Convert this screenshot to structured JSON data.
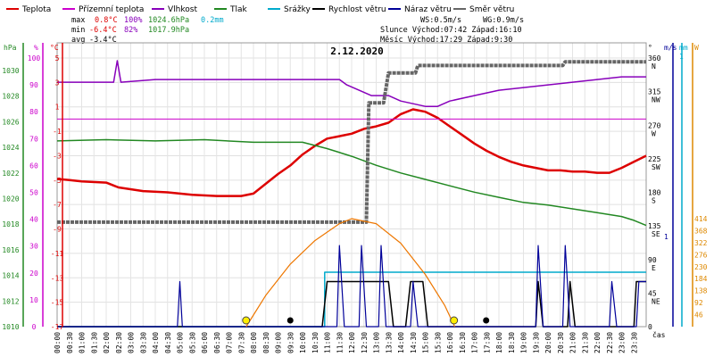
{
  "chart_data": {
    "type": "line",
    "title": "2.12.2020",
    "xlabel": "čas",
    "colors": {
      "teplota": "#dd0000",
      "prizemni_teplota": "#cc00cc",
      "vlhkost": "#8800bb",
      "tlak": "#228822",
      "srazky": "#00aacc",
      "rychlost_vetru": "#000000",
      "naraz_vetru": "#000099",
      "smer_vetru": "#666666",
      "sun": "#ee7700",
      "axis_orange": "#dd8800"
    },
    "legend": [
      {
        "key": "teplota",
        "label": "Teplota"
      },
      {
        "key": "prizemni_teplota",
        "label": "Přízemní teplota"
      },
      {
        "key": "vlhkost",
        "label": "Vlhkost"
      },
      {
        "key": "tlak",
        "label": "Tlak"
      },
      {
        "key": "srazky",
        "label": "Srážky"
      },
      {
        "key": "rychlost_vetru",
        "label": "Rychlost větru"
      },
      {
        "key": "naraz_vetru",
        "label": "Náraz větru"
      },
      {
        "key": "smer_vetru",
        "label": "Směr větru"
      }
    ],
    "stats": {
      "max": {
        "label": "max",
        "temp": "0.8°C",
        "hum": "100%",
        "press": "1024.6hPa",
        "rain": "0.2mm"
      },
      "min": {
        "label": "min",
        "temp": "-6.4°C",
        "hum": "82%",
        "press": "1017.9hPa"
      },
      "avg": {
        "label": "avg",
        "temp": "-3.4°C"
      },
      "ws": "WS:0.5m/s",
      "wg": "WG:0.9m/s",
      "sun": "Slunce Východ:07:42  Západ:16:10",
      "moon": "Měsíc  Východ:17:29  Západ:9:30"
    },
    "axes": {
      "hpa": {
        "label": "hPa",
        "ticks": [
          "1030",
          "1028",
          "1026",
          "1024",
          "1022",
          "1020",
          "1018",
          "1016",
          "1014",
          "1012",
          "1010"
        ]
      },
      "pct": {
        "label": "%",
        "ticks": [
          "100",
          "90",
          "80",
          "70",
          "60",
          "50",
          "40",
          "30",
          "20",
          "10",
          "0"
        ]
      },
      "temp": {
        "label": "°C",
        "ticks": [
          "5",
          "3",
          "1",
          "-1",
          "-3",
          "-5",
          "-7",
          "-9",
          "-11",
          "-13",
          "-15",
          "-17"
        ]
      },
      "dir": {
        "label": "°",
        "ticks": [
          "360",
          "315",
          "270",
          "225",
          "180",
          "135",
          "90",
          "45",
          "0"
        ],
        "compass": [
          "N",
          "NW",
          "W",
          "SW",
          "S",
          "SE",
          "E",
          "NE"
        ]
      },
      "ms": {
        "label": "m/s",
        "ticks": [
          "1"
        ]
      },
      "mm": {
        "label": "mm",
        "ticks": [
          "1"
        ]
      },
      "w": {
        "label": "W",
        "ticks": [
          "414",
          "368",
          "322",
          "276",
          "230",
          "184",
          "138",
          "92",
          "46"
        ]
      }
    },
    "x_ticks": [
      "00:00",
      "00:30",
      "01:00",
      "01:30",
      "02:00",
      "02:30",
      "03:00",
      "03:30",
      "04:00",
      "04:30",
      "05:00",
      "05:30",
      "06:00",
      "06:30",
      "07:00",
      "07:30",
      "08:00",
      "08:30",
      "09:00",
      "09:30",
      "10:00",
      "10:30",
      "11:00",
      "11:30",
      "12:00",
      "12:30",
      "13:00",
      "13:30",
      "14:00",
      "14:30",
      "15:00",
      "15:30",
      "16:00",
      "16:30",
      "17:00",
      "17:30",
      "18:00",
      "18:30",
      "19:00",
      "19:30",
      "20:00",
      "20:30",
      "21:00",
      "21:30",
      "22:00",
      "22:30",
      "23:00",
      "23:30"
    ],
    "ylim_temp": [
      -17,
      5
    ],
    "ylim_pct": [
      0,
      100
    ],
    "ylim_hpa": [
      1010,
      1031
    ],
    "ylim_dir": [
      0,
      360
    ],
    "ylim_w": [
      0,
      414
    ],
    "series": [
      {
        "name": "Teplota",
        "key": "teplota",
        "unit": "°C",
        "points": [
          [
            0,
            -4.9
          ],
          [
            0.5,
            -5.0
          ],
          [
            1,
            -5.1
          ],
          [
            2,
            -5.2
          ],
          [
            2.5,
            -5.6
          ],
          [
            3.5,
            -5.9
          ],
          [
            4.5,
            -6.0
          ],
          [
            5.5,
            -6.2
          ],
          [
            6.5,
            -6.3
          ],
          [
            7.5,
            -6.3
          ],
          [
            8,
            -6.1
          ],
          [
            8.5,
            -5.3
          ],
          [
            9,
            -4.5
          ],
          [
            9.5,
            -3.8
          ],
          [
            10,
            -2.9
          ],
          [
            10.5,
            -2.2
          ],
          [
            11,
            -1.6
          ],
          [
            11.5,
            -1.4
          ],
          [
            12,
            -1.2
          ],
          [
            12.5,
            -0.8
          ],
          [
            13,
            -0.6
          ],
          [
            13.5,
            -0.3
          ],
          [
            14,
            0.4
          ],
          [
            14.5,
            0.8
          ],
          [
            15,
            0.6
          ],
          [
            15.5,
            0.1
          ],
          [
            16,
            -0.6
          ],
          [
            16.5,
            -1.3
          ],
          [
            17,
            -2.0
          ],
          [
            17.5,
            -2.6
          ],
          [
            18,
            -3.1
          ],
          [
            18.5,
            -3.5
          ],
          [
            19,
            -3.8
          ],
          [
            19.5,
            -4.0
          ],
          [
            20,
            -4.2
          ],
          [
            20.5,
            -4.2
          ],
          [
            21,
            -4.3
          ],
          [
            21.5,
            -4.3
          ],
          [
            22,
            -4.4
          ],
          [
            22.5,
            -4.4
          ],
          [
            23,
            -4.0
          ],
          [
            23.5,
            -3.5
          ],
          [
            24,
            -3.0
          ]
        ]
      },
      {
        "name": "Přízemní teplota",
        "key": "prizemni_teplota",
        "unit": "°C",
        "points": [
          [
            0,
            0
          ],
          [
            24,
            0
          ]
        ]
      },
      {
        "name": "Vlhkost",
        "key": "vlhkost",
        "unit": "%",
        "points": [
          [
            0,
            91
          ],
          [
            2.3,
            91
          ],
          [
            2.45,
            99
          ],
          [
            2.6,
            91
          ],
          [
            4,
            92
          ],
          [
            10,
            92
          ],
          [
            11.5,
            92
          ],
          [
            11.8,
            90
          ],
          [
            12.3,
            88
          ],
          [
            12.8,
            86
          ],
          [
            13.5,
            86
          ],
          [
            14,
            84
          ],
          [
            14.5,
            83
          ],
          [
            15,
            82
          ],
          [
            15.5,
            82
          ],
          [
            16,
            84
          ],
          [
            17,
            86
          ],
          [
            18,
            88
          ],
          [
            19,
            89
          ],
          [
            20,
            90
          ],
          [
            21,
            91
          ],
          [
            22,
            92
          ],
          [
            23,
            93
          ],
          [
            24,
            93
          ]
        ]
      },
      {
        "name": "Tlak",
        "key": "tlak",
        "unit": "hPa",
        "points": [
          [
            0,
            1024.5
          ],
          [
            2,
            1024.6
          ],
          [
            4,
            1024.5
          ],
          [
            6,
            1024.6
          ],
          [
            8,
            1024.4
          ],
          [
            10,
            1024.4
          ],
          [
            11,
            1023.9
          ],
          [
            12,
            1023.3
          ],
          [
            13,
            1022.6
          ],
          [
            14,
            1022.0
          ],
          [
            15,
            1021.5
          ],
          [
            16,
            1021.0
          ],
          [
            17,
            1020.5
          ],
          [
            18,
            1020.1
          ],
          [
            19,
            1019.7
          ],
          [
            20,
            1019.5
          ],
          [
            21,
            1019.2
          ],
          [
            22,
            1018.9
          ],
          [
            23,
            1018.6
          ],
          [
            23.5,
            1018.3
          ],
          [
            24,
            1017.9
          ]
        ]
      },
      {
        "name": "Srážky",
        "key": "srazky",
        "unit": "mm",
        "points": [
          [
            0,
            0
          ],
          [
            10.9,
            0
          ],
          [
            10.9,
            0.2
          ],
          [
            24,
            0.2
          ]
        ]
      },
      {
        "name": "Rychlost větru",
        "key": "rychlost_vetru",
        "unit": "m/s",
        "points": [
          [
            0,
            0
          ],
          [
            10.8,
            0
          ],
          [
            11,
            0.5
          ],
          [
            12,
            0.5
          ],
          [
            12.5,
            0.5
          ],
          [
            13,
            0.5
          ],
          [
            13.5,
            0.5
          ],
          [
            13.7,
            0
          ],
          [
            14.2,
            0
          ],
          [
            14.4,
            0.5
          ],
          [
            14.9,
            0.5
          ],
          [
            15.1,
            0
          ],
          [
            19.5,
            0
          ],
          [
            19.6,
            0.5
          ],
          [
            19.8,
            0
          ],
          [
            20.8,
            0
          ],
          [
            20.9,
            0.5
          ],
          [
            21.1,
            0
          ],
          [
            23.5,
            0
          ],
          [
            23.6,
            0.5
          ],
          [
            24,
            0.5
          ]
        ]
      },
      {
        "name": "Náraz větru",
        "key": "naraz_vetru",
        "unit": "m/s",
        "points": [
          [
            0,
            0
          ],
          [
            4.9,
            0
          ],
          [
            5,
            0.5
          ],
          [
            5.1,
            0
          ],
          [
            11.4,
            0
          ],
          [
            11.5,
            0.9
          ],
          [
            11.7,
            0
          ],
          [
            12.3,
            0
          ],
          [
            12.4,
            0.9
          ],
          [
            12.6,
            0
          ],
          [
            13.1,
            0
          ],
          [
            13.2,
            0.9
          ],
          [
            13.4,
            0
          ],
          [
            14.4,
            0
          ],
          [
            14.5,
            0.5
          ],
          [
            14.7,
            0
          ],
          [
            19.5,
            0
          ],
          [
            19.6,
            0.9
          ],
          [
            19.8,
            0
          ],
          [
            20.6,
            0
          ],
          [
            20.7,
            0.9
          ],
          [
            20.9,
            0
          ],
          [
            22.5,
            0
          ],
          [
            22.6,
            0.5
          ],
          [
            22.8,
            0
          ],
          [
            23.6,
            0
          ],
          [
            23.7,
            0.5
          ],
          [
            24,
            0.5
          ]
        ]
      },
      {
        "name": "Směr větru",
        "key": "smer_vetru",
        "unit": "°",
        "points": [
          [
            0,
            140
          ],
          [
            12.6,
            140
          ],
          [
            12.7,
            300
          ],
          [
            13.3,
            300
          ],
          [
            13.5,
            340
          ],
          [
            14.6,
            340
          ],
          [
            14.7,
            350
          ],
          [
            20.6,
            350
          ],
          [
            20.7,
            355
          ],
          [
            24,
            355
          ]
        ]
      },
      {
        "name": "Slunce",
        "key": "sun",
        "unit": "W",
        "points": [
          [
            7.7,
            0
          ],
          [
            8.5,
            120
          ],
          [
            9.5,
            240
          ],
          [
            10.5,
            330
          ],
          [
            11.5,
            395
          ],
          [
            12,
            414
          ],
          [
            13,
            395
          ],
          [
            14,
            320
          ],
          [
            15,
            200
          ],
          [
            15.8,
            80
          ],
          [
            16.2,
            0
          ]
        ]
      }
    ],
    "markers": [
      {
        "type": "sunrise",
        "x": 7.7
      },
      {
        "type": "sunset",
        "x": 16.17
      },
      {
        "type": "moonset",
        "x": 9.5
      },
      {
        "type": "moonrise",
        "x": 17.48
      }
    ]
  }
}
